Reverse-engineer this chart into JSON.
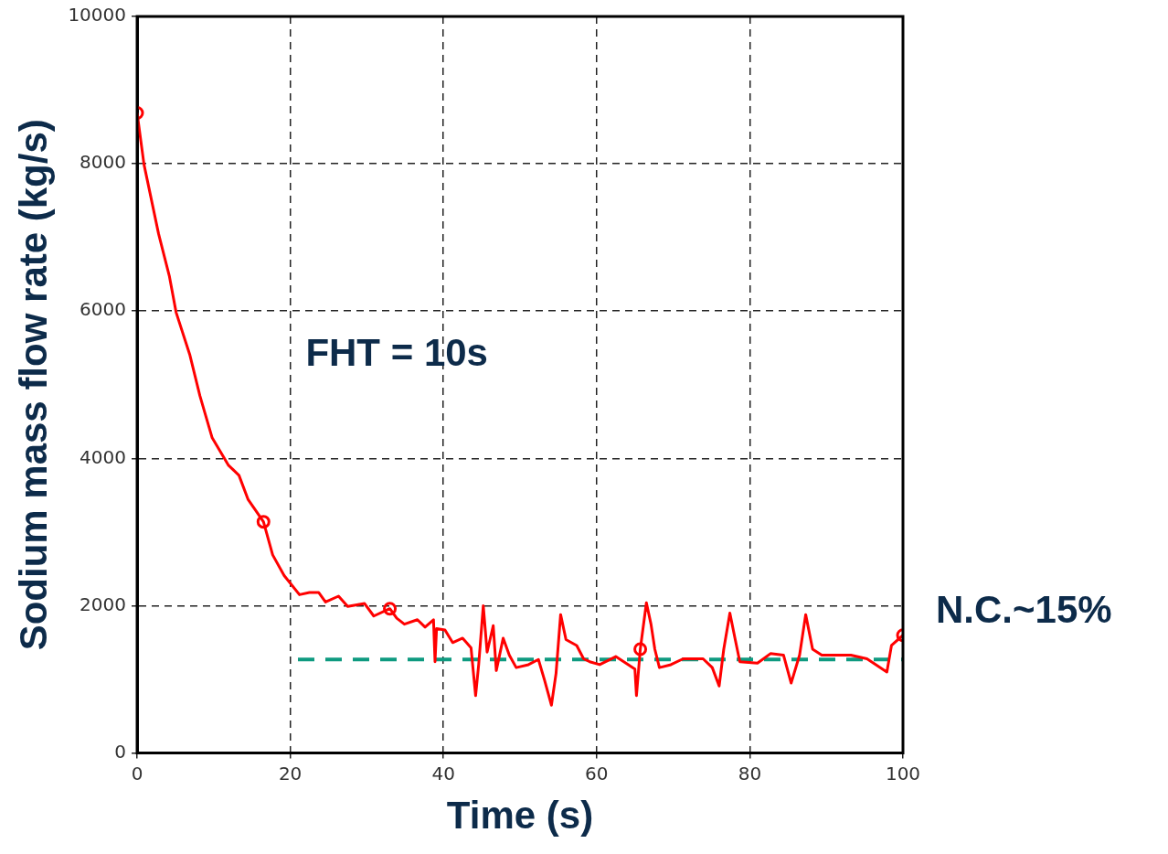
{
  "chart_data": {
    "type": "line",
    "xlabel": "Time (s)",
    "ylabel": "Sodium mass flow rate (kg/s)",
    "xlim": [
      0,
      100
    ],
    "xticks": [
      0,
      20,
      40,
      60,
      80,
      100
    ],
    "ylim": [
      0,
      10000
    ],
    "yticks": [
      0,
      2000,
      4000,
      6000,
      8000,
      10000
    ],
    "grid": true,
    "legend": false,
    "series": [
      {
        "color": "#ff0000",
        "marker": "none",
        "x": [
          0,
          0.9,
          2.8,
          4.2,
          5.1,
          6.9,
          8.2,
          9.8,
          11.9,
          13.3,
          14.5,
          16.5,
          17.7,
          19.2,
          21.2,
          22.5,
          23.7,
          24.6,
          26.3,
          27.5,
          29.7,
          30.9,
          33.0,
          33.9,
          34.9,
          36.6,
          37.6,
          38.7,
          38.9,
          39.1,
          40.2,
          41.2,
          42.5,
          43.6,
          44.2,
          44.6,
          45.2,
          45.7,
          46.5,
          46.9,
          47.8,
          48.6,
          49.5,
          51.1,
          52.4,
          53.2,
          54.1,
          54.7,
          55.3,
          56.0,
          57.4,
          58.3,
          59.1,
          60.4,
          62.5,
          65.0,
          65.2,
          65.7,
          66.5,
          67.1,
          67.6,
          68.2,
          69.7,
          71.3,
          73.9,
          75.1,
          76.0,
          76.6,
          77.4,
          78.1,
          78.7,
          81.0,
          82.7,
          84.4,
          85.4,
          86.5,
          87.3,
          88.2,
          89.4,
          93.2,
          95.3,
          97.9,
          98.5,
          100
        ],
        "values": [
          8690,
          7990,
          7050,
          6480,
          5980,
          5400,
          4850,
          4280,
          3910,
          3770,
          3440,
          3140,
          2690,
          2410,
          2150,
          2180,
          2180,
          2050,
          2130,
          1990,
          2030,
          1860,
          1960,
          1830,
          1750,
          1810,
          1710,
          1810,
          1240,
          1690,
          1670,
          1500,
          1560,
          1430,
          780,
          1200,
          2000,
          1370,
          1730,
          1120,
          1560,
          1330,
          1160,
          1200,
          1270,
          990,
          650,
          1080,
          1880,
          1540,
          1460,
          1280,
          1240,
          1200,
          1310,
          1140,
          780,
          1410,
          2040,
          1750,
          1410,
          1160,
          1200,
          1280,
          1280,
          1160,
          910,
          1410,
          1900,
          1540,
          1240,
          1220,
          1350,
          1330,
          950,
          1330,
          1880,
          1410,
          1330,
          1330,
          1280,
          1100,
          1460,
          1600
        ]
      },
      {
        "type": "scatter",
        "color": "#ff0000",
        "marker": "circle",
        "x": [
          0,
          16.5,
          33,
          65.7,
          100
        ],
        "values": [
          8690,
          3140,
          1960,
          1410,
          1600
        ]
      },
      {
        "type": "line",
        "color": "#0e9a80",
        "marker": "none",
        "line_style": "dashed",
        "x": [
          21,
          100
        ],
        "values": [
          1270,
          1270
        ]
      }
    ],
    "annotations": [
      "FHT = 10s",
      {
        "text": "N.C.~15%",
        "x": 100,
        "y": 1270
      }
    ]
  }
}
